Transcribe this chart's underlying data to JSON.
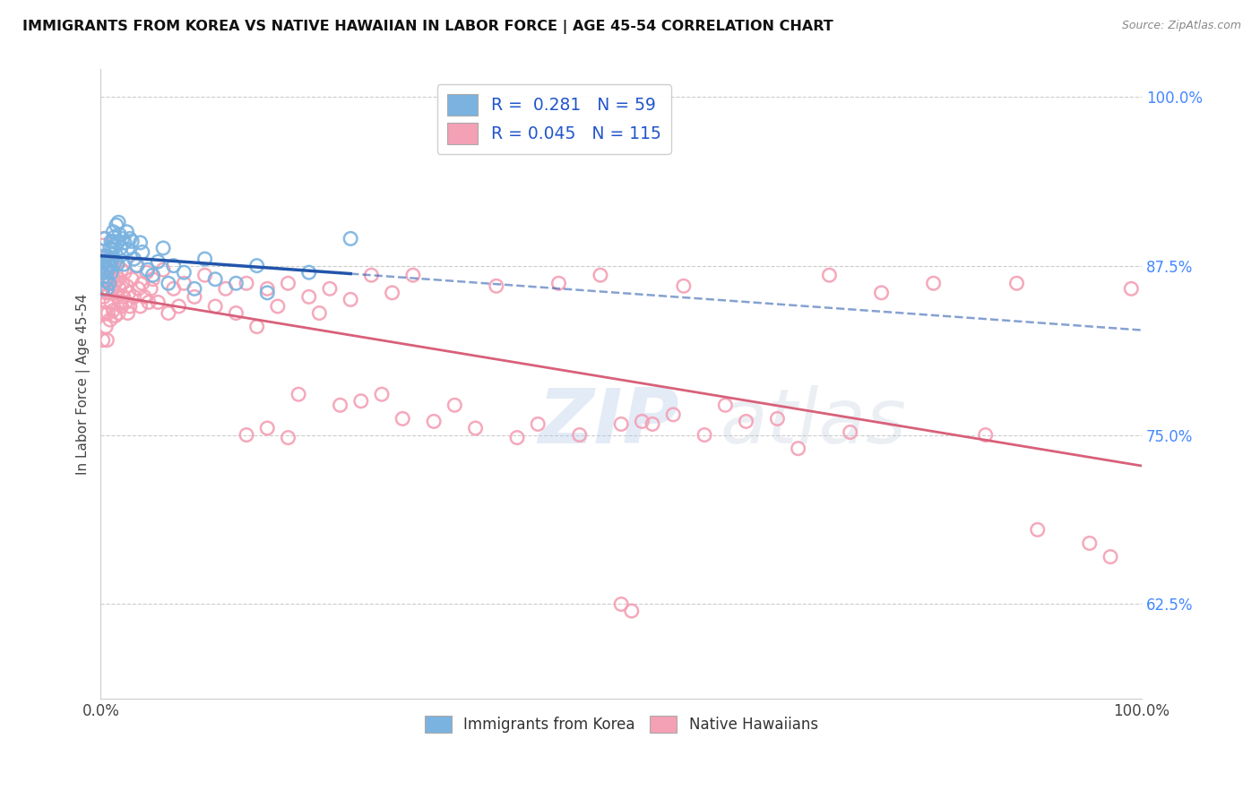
{
  "title": "IMMIGRANTS FROM KOREA VS NATIVE HAWAIIAN IN LABOR FORCE | AGE 45-54 CORRELATION CHART",
  "source": "Source: ZipAtlas.com",
  "ylabel": "In Labor Force | Age 45-54",
  "xlim": [
    0.0,
    1.0
  ],
  "ylim": [
    0.555,
    1.02
  ],
  "ytick_positions": [
    0.625,
    0.75,
    0.875,
    1.0
  ],
  "ytick_labels": [
    "62.5%",
    "75.0%",
    "87.5%",
    "100.0%"
  ],
  "legend_labels": [
    "Immigrants from Korea",
    "Native Hawaiians"
  ],
  "legend_R": [
    "0.281",
    "0.045"
  ],
  "legend_N": [
    "59",
    "115"
  ],
  "blue_color": "#7ab3e0",
  "pink_color": "#f4a0b5",
  "blue_line_color": "#2255aa",
  "pink_line_color": "#d8607a",
  "blue_scatter": [
    [
      0.001,
      0.87
    ],
    [
      0.002,
      0.875
    ],
    [
      0.002,
      0.858
    ],
    [
      0.003,
      0.867
    ],
    [
      0.003,
      0.882
    ],
    [
      0.004,
      0.878
    ],
    [
      0.004,
      0.895
    ],
    [
      0.005,
      0.864
    ],
    [
      0.005,
      0.872
    ],
    [
      0.006,
      0.87
    ],
    [
      0.006,
      0.858
    ],
    [
      0.007,
      0.876
    ],
    [
      0.007,
      0.882
    ],
    [
      0.008,
      0.88
    ],
    [
      0.008,
      0.862
    ],
    [
      0.009,
      0.888
    ],
    [
      0.009,
      0.875
    ],
    [
      0.01,
      0.893
    ],
    [
      0.01,
      0.87
    ],
    [
      0.011,
      0.887
    ],
    [
      0.011,
      0.88
    ],
    [
      0.012,
      0.9
    ],
    [
      0.012,
      0.893
    ],
    [
      0.013,
      0.896
    ],
    [
      0.014,
      0.889
    ],
    [
      0.014,
      0.878
    ],
    [
      0.015,
      0.905
    ],
    [
      0.016,
      0.892
    ],
    [
      0.016,
      0.876
    ],
    [
      0.017,
      0.907
    ],
    [
      0.018,
      0.898
    ],
    [
      0.019,
      0.888
    ],
    [
      0.02,
      0.883
    ],
    [
      0.021,
      0.895
    ],
    [
      0.022,
      0.876
    ],
    [
      0.023,
      0.892
    ],
    [
      0.025,
      0.9
    ],
    [
      0.026,
      0.887
    ],
    [
      0.028,
      0.895
    ],
    [
      0.03,
      0.893
    ],
    [
      0.032,
      0.88
    ],
    [
      0.035,
      0.875
    ],
    [
      0.038,
      0.892
    ],
    [
      0.04,
      0.885
    ],
    [
      0.045,
      0.872
    ],
    [
      0.05,
      0.868
    ],
    [
      0.055,
      0.878
    ],
    [
      0.06,
      0.888
    ],
    [
      0.065,
      0.862
    ],
    [
      0.07,
      0.875
    ],
    [
      0.08,
      0.87
    ],
    [
      0.09,
      0.858
    ],
    [
      0.1,
      0.88
    ],
    [
      0.11,
      0.865
    ],
    [
      0.13,
      0.862
    ],
    [
      0.15,
      0.875
    ],
    [
      0.16,
      0.855
    ],
    [
      0.2,
      0.87
    ],
    [
      0.24,
      0.895
    ]
  ],
  "pink_scatter": [
    [
      0.001,
      0.87
    ],
    [
      0.001,
      0.84
    ],
    [
      0.002,
      0.858
    ],
    [
      0.002,
      0.89
    ],
    [
      0.002,
      0.82
    ],
    [
      0.003,
      0.878
    ],
    [
      0.003,
      0.852
    ],
    [
      0.003,
      0.895
    ],
    [
      0.004,
      0.865
    ],
    [
      0.004,
      0.84
    ],
    [
      0.005,
      0.882
    ],
    [
      0.005,
      0.855
    ],
    [
      0.005,
      0.83
    ],
    [
      0.006,
      0.872
    ],
    [
      0.006,
      0.848
    ],
    [
      0.006,
      0.82
    ],
    [
      0.007,
      0.865
    ],
    [
      0.007,
      0.84
    ],
    [
      0.008,
      0.878
    ],
    [
      0.008,
      0.855
    ],
    [
      0.009,
      0.862
    ],
    [
      0.009,
      0.835
    ],
    [
      0.01,
      0.87
    ],
    [
      0.01,
      0.848
    ],
    [
      0.011,
      0.858
    ],
    [
      0.012,
      0.875
    ],
    [
      0.012,
      0.842
    ],
    [
      0.013,
      0.862
    ],
    [
      0.014,
      0.855
    ],
    [
      0.014,
      0.838
    ],
    [
      0.015,
      0.868
    ],
    [
      0.016,
      0.852
    ],
    [
      0.017,
      0.865
    ],
    [
      0.017,
      0.84
    ],
    [
      0.018,
      0.858
    ],
    [
      0.019,
      0.848
    ],
    [
      0.02,
      0.872
    ],
    [
      0.02,
      0.845
    ],
    [
      0.021,
      0.862
    ],
    [
      0.022,
      0.852
    ],
    [
      0.023,
      0.87
    ],
    [
      0.024,
      0.848
    ],
    [
      0.025,
      0.86
    ],
    [
      0.026,
      0.84
    ],
    [
      0.027,
      0.855
    ],
    [
      0.028,
      0.845
    ],
    [
      0.03,
      0.865
    ],
    [
      0.032,
      0.852
    ],
    [
      0.034,
      0.875
    ],
    [
      0.036,
      0.858
    ],
    [
      0.038,
      0.845
    ],
    [
      0.04,
      0.862
    ],
    [
      0.042,
      0.852
    ],
    [
      0.044,
      0.87
    ],
    [
      0.046,
      0.848
    ],
    [
      0.048,
      0.858
    ],
    [
      0.05,
      0.865
    ],
    [
      0.055,
      0.848
    ],
    [
      0.06,
      0.872
    ],
    [
      0.065,
      0.84
    ],
    [
      0.07,
      0.858
    ],
    [
      0.075,
      0.845
    ],
    [
      0.08,
      0.862
    ],
    [
      0.09,
      0.852
    ],
    [
      0.1,
      0.868
    ],
    [
      0.11,
      0.845
    ],
    [
      0.12,
      0.858
    ],
    [
      0.13,
      0.84
    ],
    [
      0.14,
      0.862
    ],
    [
      0.15,
      0.83
    ],
    [
      0.16,
      0.858
    ],
    [
      0.17,
      0.845
    ],
    [
      0.18,
      0.862
    ],
    [
      0.19,
      0.78
    ],
    [
      0.2,
      0.852
    ],
    [
      0.21,
      0.84
    ],
    [
      0.22,
      0.858
    ],
    [
      0.23,
      0.772
    ],
    [
      0.24,
      0.85
    ],
    [
      0.25,
      0.775
    ],
    [
      0.26,
      0.868
    ],
    [
      0.27,
      0.78
    ],
    [
      0.28,
      0.855
    ],
    [
      0.29,
      0.762
    ],
    [
      0.3,
      0.868
    ],
    [
      0.32,
      0.76
    ],
    [
      0.34,
      0.772
    ],
    [
      0.36,
      0.755
    ],
    [
      0.38,
      0.86
    ],
    [
      0.4,
      0.748
    ],
    [
      0.42,
      0.758
    ],
    [
      0.44,
      0.862
    ],
    [
      0.46,
      0.75
    ],
    [
      0.48,
      0.868
    ],
    [
      0.5,
      0.625
    ],
    [
      0.51,
      0.62
    ],
    [
      0.53,
      0.758
    ],
    [
      0.55,
      0.765
    ],
    [
      0.56,
      0.86
    ],
    [
      0.58,
      0.75
    ],
    [
      0.6,
      0.772
    ],
    [
      0.62,
      0.76
    ],
    [
      0.65,
      0.762
    ],
    [
      0.67,
      0.74
    ],
    [
      0.7,
      0.868
    ],
    [
      0.72,
      0.752
    ],
    [
      0.75,
      0.855
    ],
    [
      0.8,
      0.862
    ],
    [
      0.85,
      0.75
    ],
    [
      0.88,
      0.862
    ],
    [
      0.9,
      0.68
    ],
    [
      0.95,
      0.67
    ],
    [
      0.97,
      0.66
    ],
    [
      0.99,
      0.858
    ],
    [
      0.14,
      0.75
    ],
    [
      0.16,
      0.755
    ],
    [
      0.18,
      0.748
    ],
    [
      0.5,
      0.758
    ],
    [
      0.52,
      0.76
    ]
  ],
  "watermark_zip": "ZIP",
  "watermark_atlas": "atlas",
  "background_color": "#ffffff",
  "grid_color": "#cccccc"
}
